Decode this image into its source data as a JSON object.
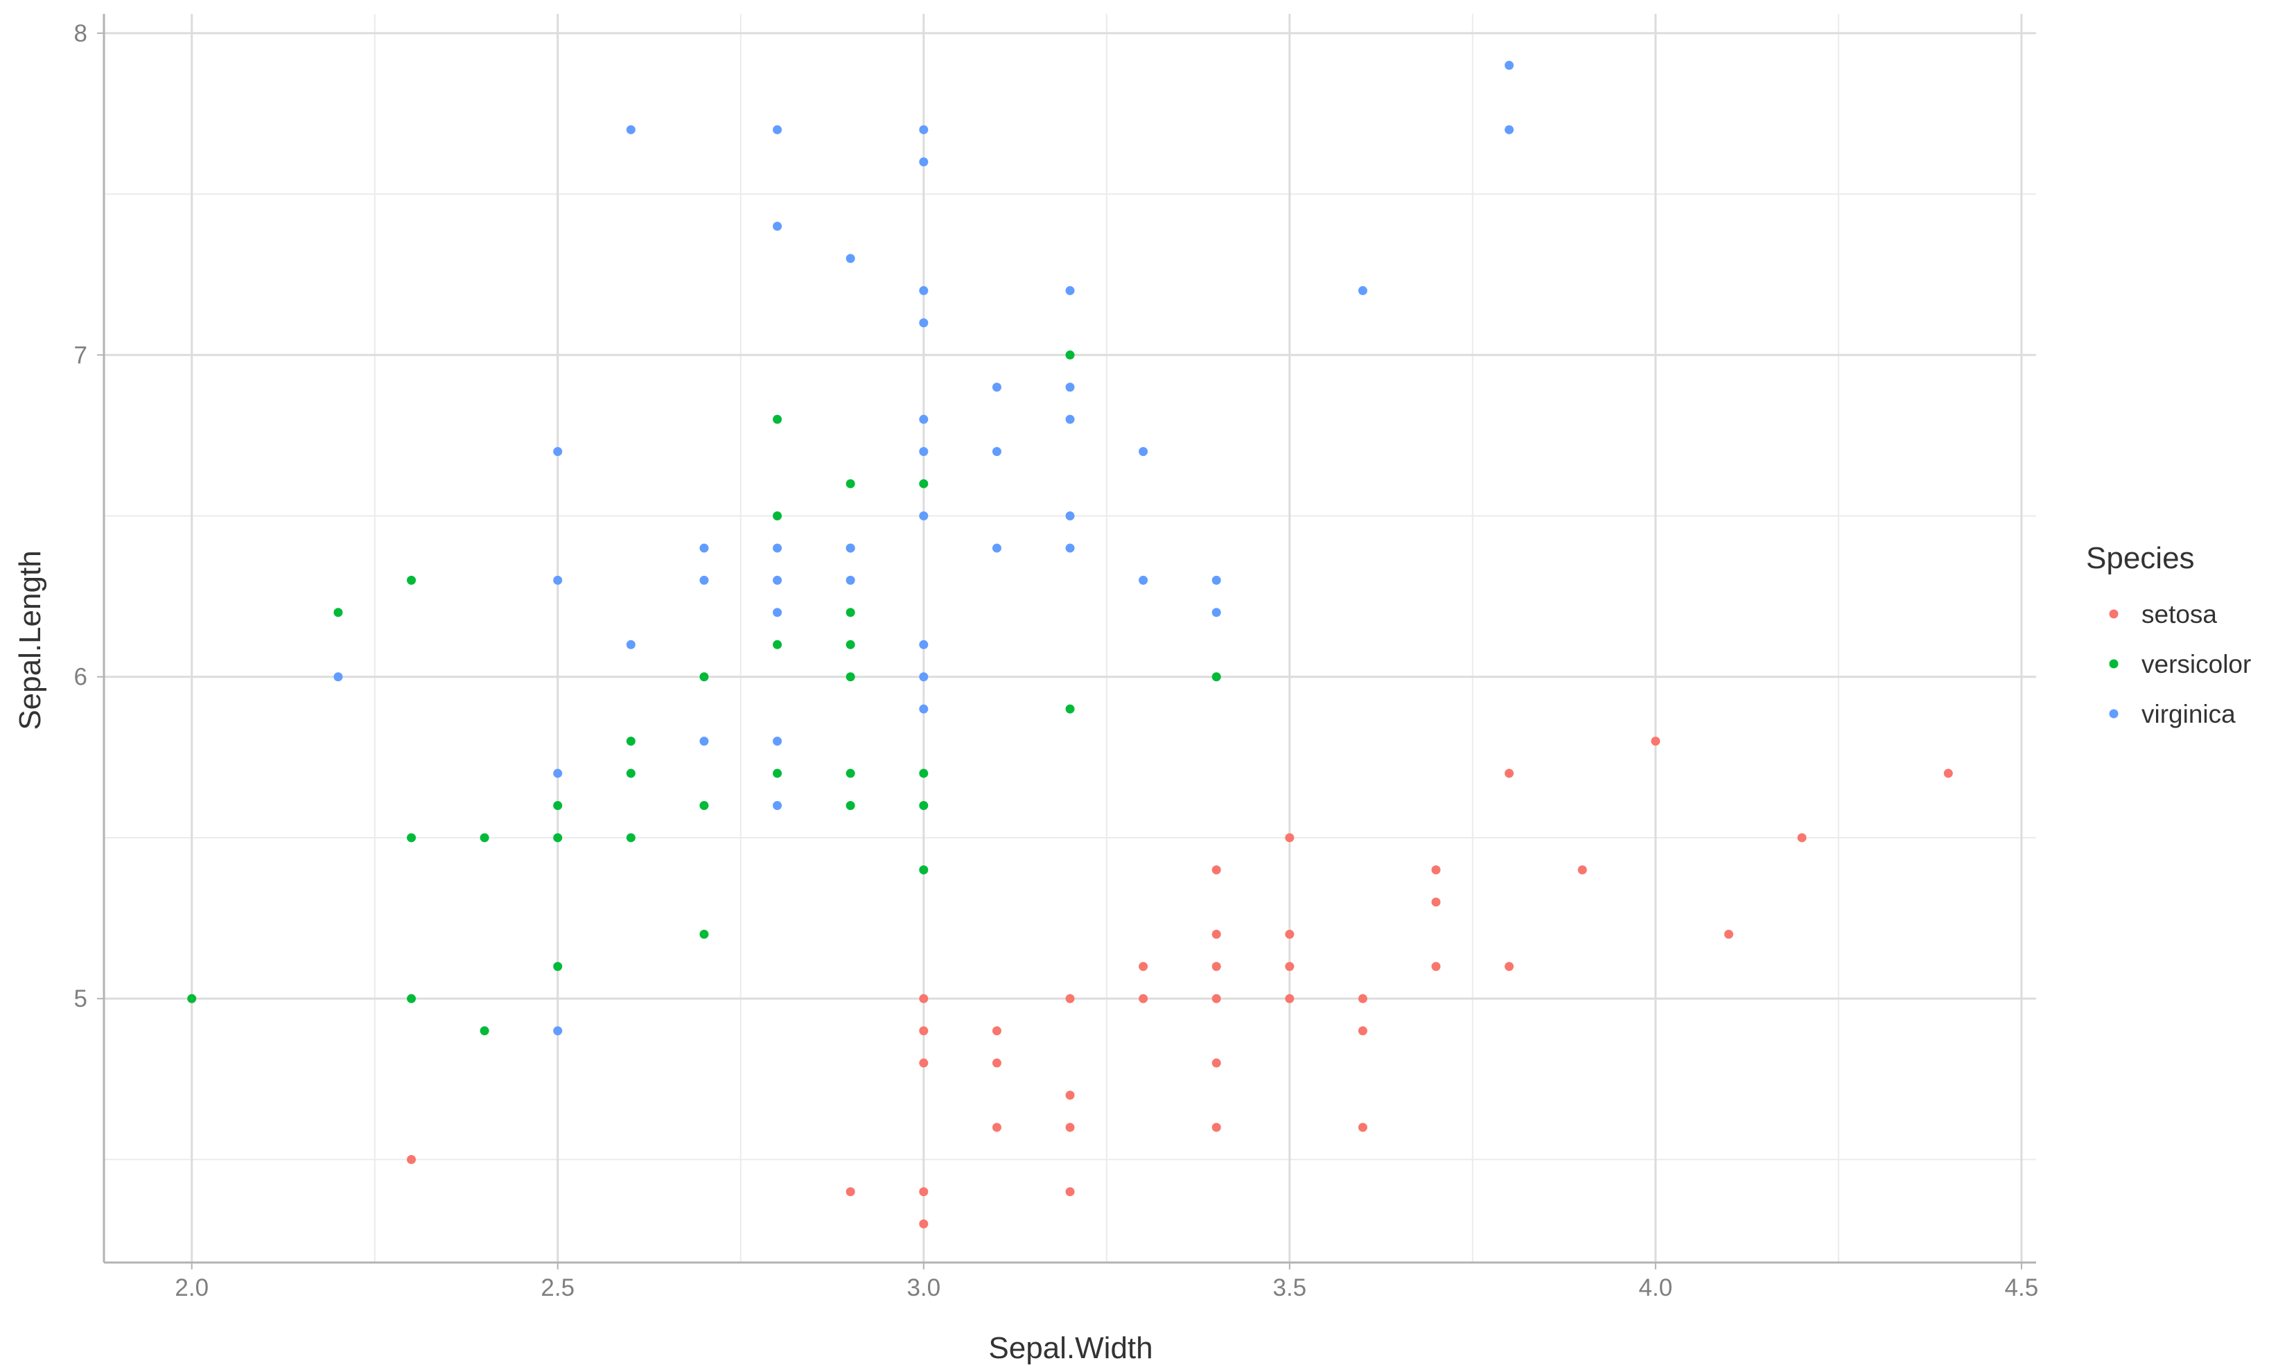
{
  "chart_data": {
    "type": "scatter",
    "title": "",
    "xlabel": "Sepal.Width",
    "ylabel": "Sepal.Length",
    "xlim": [
      1.88,
      4.52
    ],
    "ylim": [
      4.18,
      8.06
    ],
    "x_ticks": [
      2.0,
      2.5,
      3.0,
      3.5,
      4.0,
      4.5
    ],
    "x_tick_labels": [
      "2.0",
      "2.5",
      "3.0",
      "3.5",
      "4.0",
      "4.5"
    ],
    "y_ticks": [
      5,
      6,
      7,
      8
    ],
    "y_tick_labels": [
      "5",
      "6",
      "7",
      "8"
    ],
    "grid": true,
    "legend": {
      "title": "Species",
      "position": "right"
    },
    "series": [
      {
        "name": "setosa",
        "color": "#F8766D",
        "points": [
          [
            3.0,
            4.4
          ],
          [
            3.0,
            4.3
          ],
          [
            2.9,
            4.4
          ],
          [
            3.2,
            4.4
          ],
          [
            2.3,
            4.5
          ],
          [
            3.0,
            5.0
          ],
          [
            3.0,
            4.9
          ],
          [
            3.0,
            4.8
          ],
          [
            3.1,
            4.9
          ],
          [
            3.1,
            4.8
          ],
          [
            3.1,
            4.6
          ],
          [
            3.2,
            5.0
          ],
          [
            3.2,
            4.7
          ],
          [
            3.2,
            4.6
          ],
          [
            3.3,
            5.1
          ],
          [
            3.3,
            5.0
          ],
          [
            3.4,
            5.4
          ],
          [
            3.4,
            5.2
          ],
          [
            3.4,
            5.1
          ],
          [
            3.4,
            5.0
          ],
          [
            3.4,
            4.8
          ],
          [
            3.4,
            4.6
          ],
          [
            3.5,
            5.5
          ],
          [
            3.5,
            5.2
          ],
          [
            3.5,
            5.1
          ],
          [
            3.5,
            5.0
          ],
          [
            3.6,
            5.0
          ],
          [
            3.6,
            4.9
          ],
          [
            3.6,
            4.6
          ],
          [
            3.7,
            5.4
          ],
          [
            3.7,
            5.3
          ],
          [
            3.7,
            5.1
          ],
          [
            3.8,
            5.7
          ],
          [
            3.8,
            5.1
          ],
          [
            3.9,
            5.4
          ],
          [
            4.0,
            5.8
          ],
          [
            4.1,
            5.2
          ],
          [
            4.2,
            5.5
          ],
          [
            4.4,
            5.7
          ]
        ]
      },
      {
        "name": "versicolor",
        "color": "#00BA38",
        "points": [
          [
            2.0,
            5.0
          ],
          [
            2.2,
            6.2
          ],
          [
            2.3,
            6.3
          ],
          [
            2.3,
            5.5
          ],
          [
            2.3,
            5.0
          ],
          [
            2.4,
            5.5
          ],
          [
            2.4,
            4.9
          ],
          [
            2.5,
            5.6
          ],
          [
            2.5,
            5.5
          ],
          [
            2.5,
            5.1
          ],
          [
            2.6,
            5.8
          ],
          [
            2.6,
            5.7
          ],
          [
            2.6,
            5.5
          ],
          [
            2.7,
            6.0
          ],
          [
            2.7,
            5.6
          ],
          [
            2.7,
            5.2
          ],
          [
            2.8,
            6.8
          ],
          [
            2.8,
            6.5
          ],
          [
            2.8,
            6.1
          ],
          [
            2.8,
            5.7
          ],
          [
            2.9,
            6.6
          ],
          [
            2.9,
            6.4
          ],
          [
            2.9,
            6.2
          ],
          [
            2.9,
            6.1
          ],
          [
            2.9,
            6.0
          ],
          [
            2.9,
            5.7
          ],
          [
            2.9,
            5.6
          ],
          [
            3.0,
            6.6
          ],
          [
            3.0,
            5.7
          ],
          [
            3.0,
            5.6
          ],
          [
            3.0,
            5.4
          ],
          [
            3.2,
            7.0
          ],
          [
            3.2,
            5.9
          ],
          [
            3.4,
            6.0
          ]
        ]
      },
      {
        "name": "virginica",
        "color": "#619CFF",
        "points": [
          [
            2.2,
            6.0
          ],
          [
            2.5,
            6.7
          ],
          [
            2.5,
            6.3
          ],
          [
            2.5,
            5.7
          ],
          [
            2.5,
            4.9
          ],
          [
            2.6,
            7.7
          ],
          [
            2.6,
            6.1
          ],
          [
            2.7,
            6.4
          ],
          [
            2.7,
            6.3
          ],
          [
            2.7,
            5.8
          ],
          [
            2.8,
            7.7
          ],
          [
            2.8,
            7.4
          ],
          [
            2.8,
            6.4
          ],
          [
            2.8,
            6.3
          ],
          [
            2.8,
            6.2
          ],
          [
            2.8,
            5.8
          ],
          [
            2.8,
            5.6
          ],
          [
            2.9,
            7.3
          ],
          [
            2.9,
            6.4
          ],
          [
            2.9,
            6.3
          ],
          [
            3.0,
            7.7
          ],
          [
            3.0,
            7.6
          ],
          [
            3.0,
            7.2
          ],
          [
            3.0,
            7.1
          ],
          [
            3.0,
            6.8
          ],
          [
            3.0,
            6.7
          ],
          [
            3.0,
            6.5
          ],
          [
            3.0,
            6.1
          ],
          [
            3.0,
            6.0
          ],
          [
            3.0,
            5.9
          ],
          [
            3.1,
            6.9
          ],
          [
            3.1,
            6.7
          ],
          [
            3.1,
            6.4
          ],
          [
            3.2,
            7.2
          ],
          [
            3.2,
            6.9
          ],
          [
            3.2,
            6.8
          ],
          [
            3.2,
            6.5
          ],
          [
            3.2,
            6.4
          ],
          [
            3.3,
            6.7
          ],
          [
            3.3,
            6.3
          ],
          [
            3.4,
            6.3
          ],
          [
            3.4,
            6.2
          ],
          [
            3.6,
            7.2
          ],
          [
            3.8,
            7.9
          ],
          [
            3.8,
            7.7
          ]
        ]
      }
    ]
  }
}
